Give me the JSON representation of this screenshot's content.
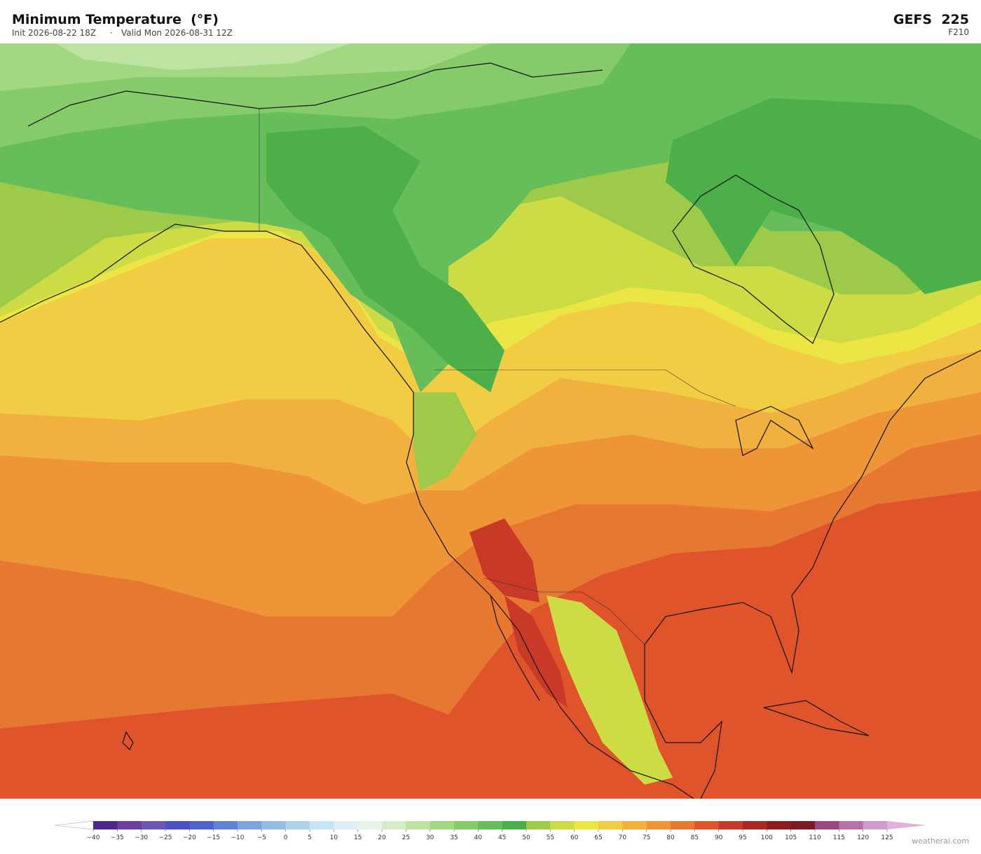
{
  "header": {
    "title": "Minimum Temperature  (°F)",
    "init": "Init 2026-08-22 18Z",
    "valid": "Valid Mon 2026-08-31 12Z",
    "model": "GEFS  225",
    "forecast_hour": "F210"
  },
  "colorbar": {
    "ticks": [
      {
        "value": -40,
        "label": "−40"
      },
      {
        "value": -35,
        "label": "−35"
      },
      {
        "value": -30,
        "label": "−30"
      },
      {
        "value": -25,
        "label": "−25"
      },
      {
        "value": -20,
        "label": "−20"
      },
      {
        "value": -15,
        "label": "−15"
      },
      {
        "value": -10,
        "label": "−10"
      },
      {
        "value": -5,
        "label": "−5"
      },
      0,
      5,
      10,
      15,
      20,
      25,
      30,
      35,
      40,
      45,
      50,
      55,
      60,
      65,
      70,
      75,
      80,
      85,
      90,
      95,
      100,
      105,
      110,
      115,
      120,
      125
    ],
    "colors": [
      "#4b2a8a",
      "#6a3fa0",
      "#6b55b5",
      "#4d4fc4",
      "#4e62cf",
      "#5f84d6",
      "#7ba5dc",
      "#93bde3",
      "#acd3ea",
      "#c6e4f1",
      "#dcf0f5",
      "#e6f5ea",
      "#d4edc9",
      "#bde3a3",
      "#a3d882",
      "#86cb69",
      "#66bd5a",
      "#4caf4a",
      "#9dca48",
      "#cddc45",
      "#ece645",
      "#f2cd44",
      "#f1b13f",
      "#ed9537",
      "#e77832",
      "#e0542b",
      "#c83a27",
      "#ad2724",
      "#8e1b1f",
      "#7a1a24",
      "#9a4a7a",
      "#b870a8",
      "#d09ccb"
    ],
    "under_color": "#ffffff",
    "over_color": "#dfb2dc"
  },
  "footer": {
    "watermark": "weatherai.com"
  }
}
